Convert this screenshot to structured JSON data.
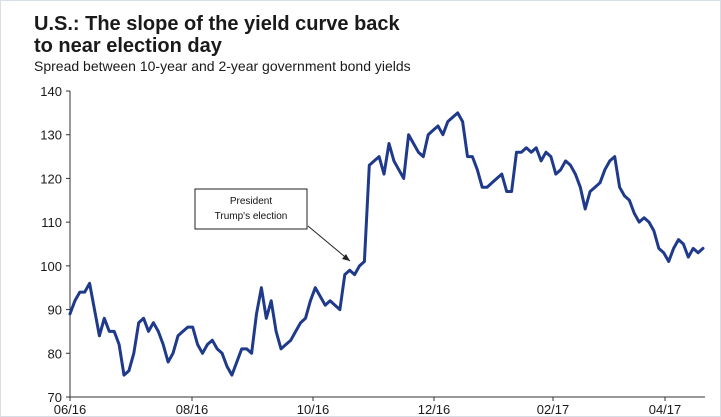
{
  "chart_data": {
    "type": "line",
    "title_line1": "U.S.: The slope of the yield curve back",
    "title_line2": "to near election day",
    "subtitle": "Spread between 10-year and 2-year government bond yields",
    "xlabel": "",
    "ylabel": "",
    "ylim": [
      70,
      140
    ],
    "yticks": [
      70,
      80,
      90,
      100,
      110,
      120,
      130,
      140
    ],
    "xtick_labels": [
      "06/16",
      "08/16",
      "10/16",
      "12/16",
      "02/17",
      "04/17"
    ],
    "grid": false,
    "line_color": "#1f3a8a",
    "annotation": {
      "line1": "President",
      "line2": "Trump's election",
      "target_index": 15
    },
    "series": [
      {
        "values": [
          89,
          92,
          94,
          94,
          96,
          90,
          84,
          88,
          85,
          85,
          82,
          75,
          76,
          80,
          87,
          88,
          85,
          87,
          85,
          82,
          78,
          80,
          84,
          85,
          86,
          86,
          82,
          80,
          82,
          83,
          81,
          80,
          77,
          75,
          78,
          81,
          81,
          80,
          89,
          95,
          88,
          92,
          85,
          81,
          82,
          83,
          85,
          87,
          88,
          92,
          95,
          93,
          91,
          92,
          91,
          90,
          98,
          99,
          98,
          100,
          101,
          123,
          124,
          125,
          121,
          128,
          124,
          122,
          120,
          130,
          128,
          126,
          125,
          130,
          131,
          132,
          130,
          133,
          134,
          135,
          133,
          125,
          125,
          122,
          118,
          118,
          119,
          120,
          121,
          117,
          117,
          126,
          126,
          127,
          126,
          127,
          124,
          126,
          125,
          121,
          122,
          124,
          123,
          121,
          118,
          113,
          117,
          118,
          119,
          122,
          124,
          125,
          118,
          116,
          115,
          112,
          110,
          111,
          110,
          108,
          104,
          103,
          101,
          104,
          106,
          105,
          102,
          104,
          103,
          104
        ]
      }
    ]
  }
}
